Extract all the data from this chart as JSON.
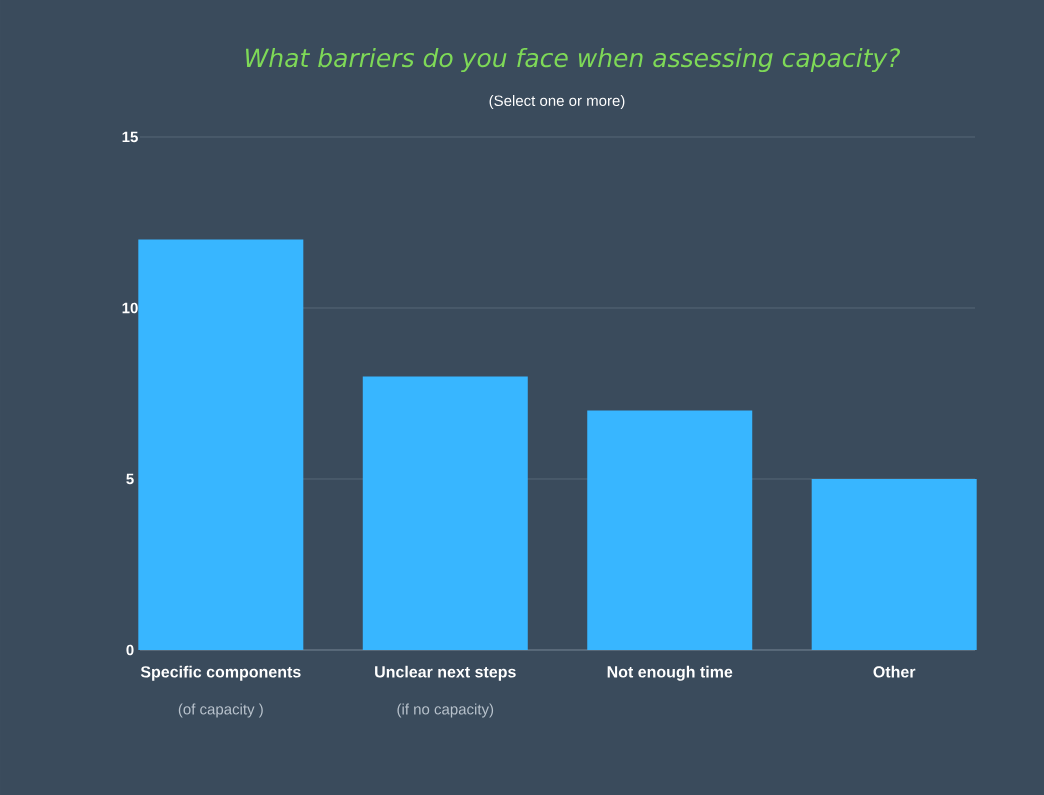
{
  "chart_data": {
    "type": "bar",
    "title": "What barriers do you face when assessing capacity?",
    "subtitle": "(Select one or more)",
    "categories": [
      "Specific components",
      "Unclear next steps",
      "Not enough time",
      "Other"
    ],
    "values": [
      12,
      8,
      7,
      5
    ],
    "color": "#38b6ff",
    "ylim": [
      0,
      15
    ],
    "yticks": [
      0,
      5,
      10,
      15
    ],
    "grid": "y",
    "annotations": [
      "(of capacity )",
      "(if no capacity)"
    ]
  }
}
